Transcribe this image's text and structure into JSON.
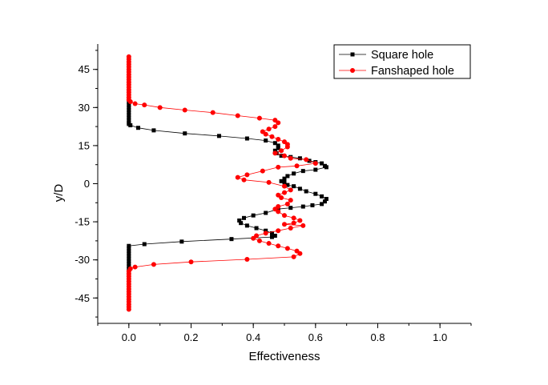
{
  "chart_data": {
    "type": "scatter",
    "xlabel": "Effectiveness",
    "ylabel": "y/D",
    "xlim": [
      -0.1,
      1.1
    ],
    "ylim": [
      -55,
      55
    ],
    "x_ticks": [
      0.0,
      0.2,
      0.4,
      0.6,
      0.8,
      1.0
    ],
    "x_tick_labels": [
      "0.0",
      "0.2",
      "0.4",
      "0.6",
      "0.8",
      "1.0"
    ],
    "y_ticks": [
      45,
      30,
      15,
      0,
      -15,
      -30,
      -45
    ],
    "y_tick_labels": [
      "45",
      "30",
      "15",
      "0",
      "-15",
      "-30",
      "-45"
    ],
    "grid": false,
    "legend_position": "top-right",
    "series": [
      {
        "name": "Square hole",
        "color": "#000000",
        "marker": "square",
        "points": [
          [
            0.0,
            33
          ],
          [
            0.0,
            32
          ],
          [
            0.0,
            31
          ],
          [
            0.0,
            30
          ],
          [
            0.0,
            29
          ],
          [
            0.0,
            28
          ],
          [
            0.0,
            27
          ],
          [
            0.0,
            26
          ],
          [
            0.0,
            25
          ],
          [
            0.0,
            24
          ],
          [
            0.0,
            23.5
          ],
          [
            0.005,
            23
          ],
          [
            0.03,
            22
          ],
          [
            0.08,
            21
          ],
          [
            0.18,
            19.8
          ],
          [
            0.29,
            18.8
          ],
          [
            0.38,
            17.8
          ],
          [
            0.44,
            17
          ],
          [
            0.47,
            16
          ],
          [
            0.48,
            15
          ],
          [
            0.48,
            14
          ],
          [
            0.47,
            13
          ],
          [
            0.475,
            12
          ],
          [
            0.49,
            11
          ],
          [
            0.52,
            10.5
          ],
          [
            0.55,
            10
          ],
          [
            0.58,
            9
          ],
          [
            0.6,
            8.5
          ],
          [
            0.62,
            8
          ],
          [
            0.63,
            7
          ],
          [
            0.635,
            6.5
          ],
          [
            0.6,
            5.5
          ],
          [
            0.56,
            5
          ],
          [
            0.53,
            4
          ],
          [
            0.51,
            3
          ],
          [
            0.5,
            2
          ],
          [
            0.49,
            1
          ],
          [
            0.5,
            0.5
          ],
          [
            0.51,
            -0.5
          ],
          [
            0.53,
            -1
          ],
          [
            0.55,
            -2
          ],
          [
            0.57,
            -3
          ],
          [
            0.6,
            -4
          ],
          [
            0.62,
            -5
          ],
          [
            0.635,
            -6
          ],
          [
            0.63,
            -7
          ],
          [
            0.62,
            -8
          ],
          [
            0.59,
            -8.5
          ],
          [
            0.56,
            -9
          ],
          [
            0.52,
            -9.5
          ],
          [
            0.48,
            -10
          ],
          [
            0.44,
            -11.5
          ],
          [
            0.4,
            -12.5
          ],
          [
            0.37,
            -13.5
          ],
          [
            0.355,
            -14.5
          ],
          [
            0.36,
            -15.5
          ],
          [
            0.38,
            -16.5
          ],
          [
            0.41,
            -17.5
          ],
          [
            0.44,
            -18.5
          ],
          [
            0.46,
            -19.5
          ],
          [
            0.47,
            -20.5
          ],
          [
            0.46,
            -21
          ],
          [
            0.33,
            -21.8
          ],
          [
            0.17,
            -22.8
          ],
          [
            0.05,
            -23.8
          ],
          [
            0.0,
            -24.5
          ],
          [
            0.0,
            -25.5
          ],
          [
            0.0,
            -26.5
          ],
          [
            0.0,
            -27.5
          ],
          [
            0.0,
            -28.5
          ],
          [
            0.0,
            -29.5
          ],
          [
            0.0,
            -30.5
          ],
          [
            0.0,
            -31.5
          ],
          [
            0.0,
            -32.5
          ],
          [
            0.0,
            -33.5
          ],
          [
            0.0,
            -34.5
          ]
        ]
      },
      {
        "name": "Fanshaped hole",
        "color": "#ff0000",
        "marker": "circle",
        "points": [
          [
            0.0,
            50
          ],
          [
            0.0,
            49
          ],
          [
            0.0,
            48
          ],
          [
            0.0,
            47
          ],
          [
            0.0,
            46
          ],
          [
            0.0,
            45
          ],
          [
            0.0,
            44
          ],
          [
            0.0,
            43
          ],
          [
            0.0,
            42
          ],
          [
            0.0,
            41
          ],
          [
            0.0,
            40
          ],
          [
            0.0,
            39
          ],
          [
            0.0,
            38
          ],
          [
            0.0,
            37
          ],
          [
            0.0,
            36
          ],
          [
            0.0,
            35
          ],
          [
            0.0,
            34
          ],
          [
            0.0,
            33
          ],
          [
            0.005,
            32.3
          ],
          [
            0.02,
            31.5
          ],
          [
            0.05,
            31
          ],
          [
            0.1,
            30
          ],
          [
            0.18,
            29
          ],
          [
            0.27,
            28
          ],
          [
            0.35,
            26.8
          ],
          [
            0.42,
            25.8
          ],
          [
            0.47,
            25
          ],
          [
            0.48,
            24
          ],
          [
            0.47,
            22.5
          ],
          [
            0.45,
            21.5
          ],
          [
            0.43,
            20.5
          ],
          [
            0.44,
            19.5
          ],
          [
            0.46,
            18.5
          ],
          [
            0.48,
            17.5
          ],
          [
            0.5,
            16.5
          ],
          [
            0.51,
            15.5
          ],
          [
            0.51,
            14.5
          ],
          [
            0.49,
            13
          ],
          [
            0.47,
            12
          ],
          [
            0.5,
            11
          ],
          [
            0.52,
            10
          ],
          [
            0.57,
            9.5
          ],
          [
            0.6,
            8
          ],
          [
            0.54,
            7
          ],
          [
            0.48,
            6.5
          ],
          [
            0.43,
            5
          ],
          [
            0.38,
            3.5
          ],
          [
            0.35,
            2.5
          ],
          [
            0.37,
            1.5
          ],
          [
            0.45,
            0.5
          ],
          [
            0.5,
            -1
          ],
          [
            0.52,
            -2.5
          ],
          [
            0.5,
            -3.5
          ],
          [
            0.48,
            -4.5
          ],
          [
            0.49,
            -5.5
          ],
          [
            0.52,
            -6.5
          ],
          [
            0.51,
            -8
          ],
          [
            0.48,
            -9
          ],
          [
            0.47,
            -10
          ],
          [
            0.48,
            -11
          ],
          [
            0.5,
            -12.5
          ],
          [
            0.53,
            -13.5
          ],
          [
            0.55,
            -14.5
          ],
          [
            0.53,
            -15.5
          ],
          [
            0.5,
            -16
          ],
          [
            0.56,
            -16.5
          ],
          [
            0.52,
            -17.5
          ],
          [
            0.48,
            -18.5
          ],
          [
            0.44,
            -19.5
          ],
          [
            0.41,
            -20.5
          ],
          [
            0.4,
            -21.5
          ],
          [
            0.42,
            -22.5
          ],
          [
            0.45,
            -23.5
          ],
          [
            0.48,
            -24.5
          ],
          [
            0.51,
            -25.5
          ],
          [
            0.54,
            -26.5
          ],
          [
            0.55,
            -27.5
          ],
          [
            0.53,
            -28.8
          ],
          [
            0.38,
            -29.8
          ],
          [
            0.2,
            -30.8
          ],
          [
            0.08,
            -31.8
          ],
          [
            0.02,
            -32.8
          ],
          [
            0.005,
            -33.5
          ],
          [
            0.0,
            -34.5
          ],
          [
            0.0,
            -35.5
          ],
          [
            0.0,
            -36.5
          ],
          [
            0.0,
            -37.5
          ],
          [
            0.0,
            -38.5
          ],
          [
            0.0,
            -39.5
          ],
          [
            0.0,
            -40.5
          ],
          [
            0.0,
            -41.5
          ],
          [
            0.0,
            -42.5
          ],
          [
            0.0,
            -43.5
          ],
          [
            0.0,
            -44.5
          ],
          [
            0.0,
            -45.5
          ],
          [
            0.0,
            -46.5
          ],
          [
            0.0,
            -47.5
          ],
          [
            0.0,
            -48.5
          ],
          [
            0.0,
            -49.5
          ]
        ]
      }
    ]
  }
}
